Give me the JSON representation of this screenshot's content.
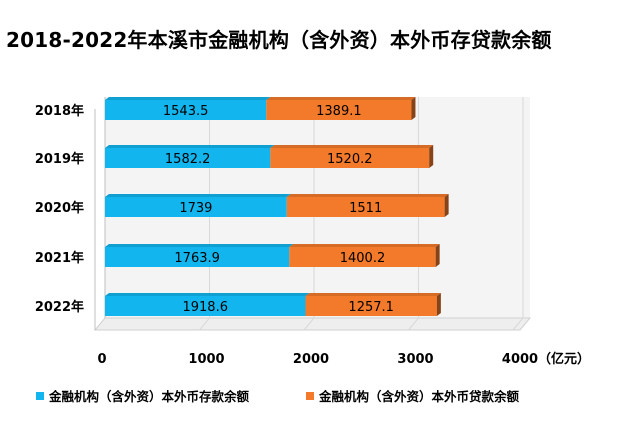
{
  "chart_data": {
    "type": "bar",
    "orientation": "horizontal",
    "stacked": true,
    "title": "2018-2022年本溪市金融机构（含外资）本外币存贷款余额",
    "categories": [
      "2018年",
      "2019年",
      "2020年",
      "2021年",
      "2022年"
    ],
    "series": [
      {
        "name": "金融机构（含外资）本外币存款余额",
        "color": "#12B5EE",
        "values": [
          1543.5,
          1582.2,
          1739,
          1763.9,
          1918.6
        ],
        "labels": [
          "1543.5",
          "1582.2",
          "1739",
          "1763.9",
          "1918.6"
        ]
      },
      {
        "name": "金融机构（含外资）本外币贷款余额",
        "color": "#F27A2A",
        "values": [
          1389.1,
          1520.2,
          1511,
          1400.2,
          1257.1
        ],
        "labels": [
          "1389.1",
          "1520.2",
          "1511",
          "1400.2",
          "1257.1"
        ]
      }
    ],
    "x_ticks": [
      "0",
      "1000",
      "2000",
      "3000",
      "4000"
    ],
    "xlim": [
      0,
      4000
    ],
    "unit": "（亿元）",
    "grid": true,
    "legend_position": "bottom"
  }
}
